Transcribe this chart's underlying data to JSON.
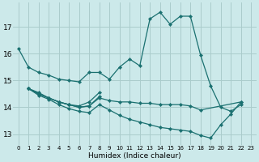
{
  "xlabel": "Humidex (Indice chaleur)",
  "xlim": [
    -0.5,
    23.5
  ],
  "ylim": [
    12.6,
    17.9
  ],
  "yticks": [
    13,
    14,
    15,
    16,
    17
  ],
  "xticks": [
    0,
    1,
    2,
    3,
    4,
    5,
    6,
    7,
    8,
    9,
    10,
    11,
    12,
    13,
    14,
    15,
    16,
    17,
    18,
    19,
    20,
    21,
    22,
    23
  ],
  "bg_color": "#cce9ea",
  "grid_color": "#aacccc",
  "line_color": "#1a7070",
  "lines": [
    {
      "x": [
        0,
        1,
        2,
        3,
        4,
        5,
        6,
        7,
        8,
        9,
        10,
        11,
        12,
        13,
        14,
        15,
        16,
        17,
        18,
        19,
        20,
        21,
        22
      ],
      "y": [
        16.2,
        15.5,
        15.3,
        15.2,
        15.05,
        15.0,
        14.95,
        15.3,
        15.3,
        15.05,
        15.5,
        15.8,
        15.55,
        17.3,
        17.55,
        17.1,
        17.4,
        17.4,
        15.95,
        14.8,
        14.0,
        13.85,
        14.1
      ]
    },
    {
      "x": [
        1,
        2,
        3,
        4,
        5,
        6,
        7,
        8
      ],
      "y": [
        14.7,
        14.55,
        14.35,
        14.2,
        14.1,
        14.05,
        14.2,
        14.55
      ]
    },
    {
      "x": [
        1,
        2,
        3,
        4,
        5,
        6,
        7,
        8
      ],
      "y": [
        14.7,
        14.5,
        14.35,
        14.2,
        14.1,
        14.0,
        14.05,
        14.4
      ]
    },
    {
      "x": [
        1,
        2,
        3,
        4,
        5,
        6,
        7,
        8,
        9,
        10,
        11,
        12,
        13,
        14,
        15,
        16,
        17,
        18,
        22
      ],
      "y": [
        14.7,
        14.5,
        14.35,
        14.2,
        14.1,
        14.0,
        14.05,
        14.35,
        14.25,
        14.2,
        14.2,
        14.15,
        14.15,
        14.1,
        14.1,
        14.1,
        14.05,
        13.9,
        14.2
      ]
    },
    {
      "x": [
        1,
        2,
        3,
        4,
        5,
        6,
        7,
        8,
        9,
        10,
        11,
        12,
        13,
        14,
        15,
        16,
        17,
        18,
        19,
        20,
        21,
        22
      ],
      "y": [
        14.7,
        14.45,
        14.3,
        14.1,
        13.95,
        13.85,
        13.8,
        14.1,
        13.9,
        13.7,
        13.55,
        13.45,
        13.35,
        13.25,
        13.2,
        13.15,
        13.1,
        12.95,
        12.85,
        13.35,
        13.75,
        14.2
      ]
    }
  ]
}
